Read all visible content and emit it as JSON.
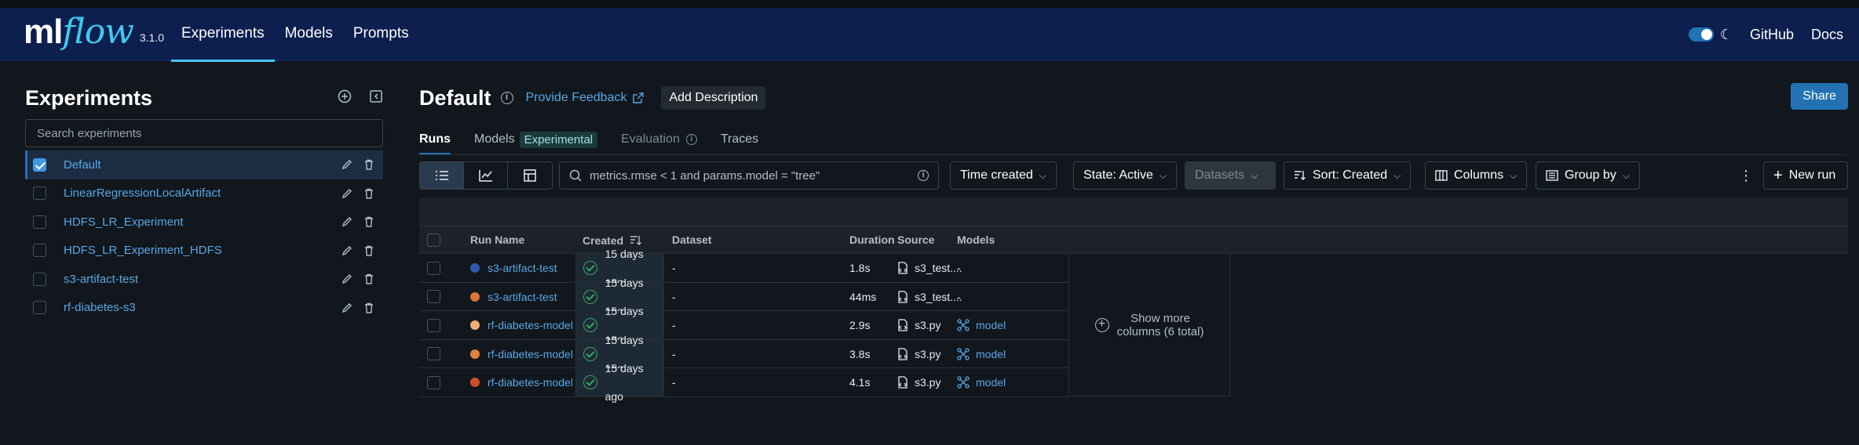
{
  "app": {
    "logo_ml": "ml",
    "logo_flow": "flow",
    "version": "3.1.0"
  },
  "nav": {
    "links": [
      "Experiments",
      "Models",
      "Prompts"
    ],
    "github": "GitHub",
    "docs": "Docs"
  },
  "sidebar": {
    "title": "Experiments",
    "search_placeholder": "Search experiments",
    "experiments": [
      {
        "name": "Default",
        "selected": true
      },
      {
        "name": "LinearRegressionLocalArtifact",
        "selected": false
      },
      {
        "name": "HDFS_LR_Experiment",
        "selected": false
      },
      {
        "name": "HDFS_LR_Experiment_HDFS",
        "selected": false
      },
      {
        "name": "s3-artifact-test",
        "selected": false
      },
      {
        "name": "rf-diabetes-s3",
        "selected": false
      }
    ]
  },
  "main": {
    "title": "Default",
    "feedback": "Provide Feedback",
    "add_description": "Add Description",
    "share": "Share",
    "tabs": {
      "runs": "Runs",
      "models": "Models",
      "experimental": "Experimental",
      "evaluation": "Evaluation",
      "traces": "Traces"
    },
    "toolbar": {
      "filter_value": "metrics.rmse < 1 and params.model = \"tree\"",
      "time_created": "Time created",
      "state": "State: Active",
      "datasets": "Datasets",
      "sort": "Sort: Created",
      "columns": "Columns",
      "group_by": "Group by",
      "new_run": "New run"
    },
    "table": {
      "headers": {
        "run_name": "Run Name",
        "created": "Created",
        "dataset": "Dataset",
        "duration": "Duration",
        "source": "Source",
        "models": "Models"
      },
      "rows": [
        {
          "run_name": "s3-artifact-test",
          "color": "#2e5aa8",
          "created": "15 days ago",
          "dataset": "-",
          "duration": "1.8s",
          "source": "s3_test....",
          "models": "-",
          "has_model": false
        },
        {
          "run_name": "s3-artifact-test",
          "color": "#d9773a",
          "created": "15 days ago",
          "dataset": "-",
          "duration": "44ms",
          "source": "s3_test....",
          "models": "-",
          "has_model": false
        },
        {
          "run_name": "rf-diabetes-model",
          "color": "#f0b07a",
          "created": "15 days ago",
          "dataset": "-",
          "duration": "2.9s",
          "source": "s3.py",
          "models": "model",
          "has_model": true
        },
        {
          "run_name": "rf-diabetes-model",
          "color": "#e08040",
          "created": "15 days ago",
          "dataset": "-",
          "duration": "3.8s",
          "source": "s3.py",
          "models": "model",
          "has_model": true
        },
        {
          "run_name": "rf-diabetes-model",
          "color": "#c8502a",
          "created": "15 days ago",
          "dataset": "-",
          "duration": "4.1s",
          "source": "s3.py",
          "models": "model",
          "has_model": true
        }
      ],
      "show_more": "Show more",
      "show_more_sub": "columns (6 total)"
    }
  }
}
